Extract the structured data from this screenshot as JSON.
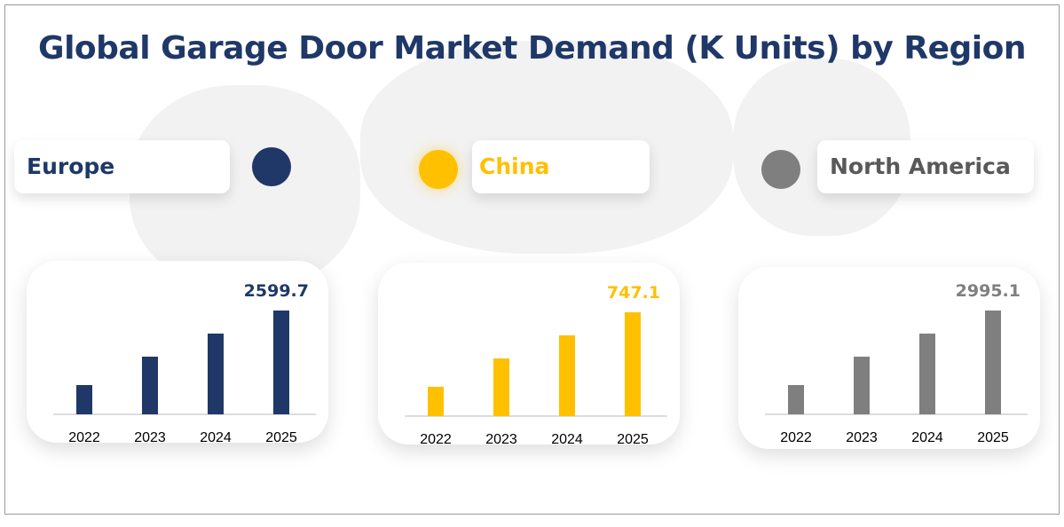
{
  "title": "Global Garage Door Market Demand (K Units) by Region",
  "chart_data": [
    {
      "type": "bar",
      "region": "Europe",
      "color": "#1f3868",
      "categories": [
        "2022",
        "2023",
        "2024",
        "2025"
      ],
      "values": [
        733,
        1444,
        2022,
        2599.7
      ],
      "data_labels": [
        "",
        "",
        "",
        "2599.7"
      ]
    },
    {
      "type": "bar",
      "region": "China",
      "color": "#ffc000",
      "categories": [
        "2022",
        "2023",
        "2024",
        "2025"
      ],
      "values": [
        211,
        415,
        581,
        747.1
      ],
      "data_labels": [
        "",
        "",
        "",
        "747.1"
      ]
    },
    {
      "type": "bar",
      "region": "North America",
      "color": "#7f7f7f",
      "categories": [
        "2022",
        "2023",
        "2024",
        "2025"
      ],
      "values": [
        845,
        1664,
        2329,
        2995.1
      ],
      "data_labels": [
        "",
        "",
        "",
        "2995.1"
      ]
    }
  ]
}
